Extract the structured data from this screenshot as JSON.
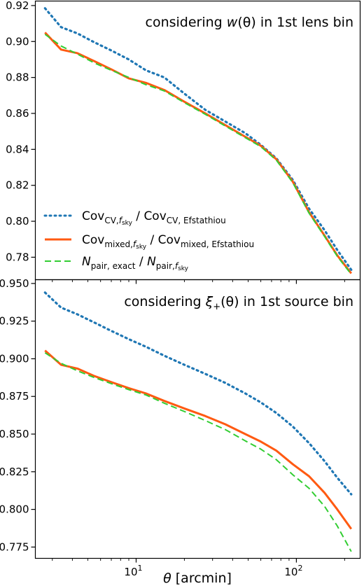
{
  "figure": {
    "xlabel": "θ [arcmin]",
    "xscale": "log",
    "xlim": [
      2.35,
      250
    ],
    "x_ticks": [
      {
        "value": 10,
        "label": "10",
        "sup": "1"
      },
      {
        "value": 100,
        "label": "10",
        "sup": "2"
      }
    ]
  },
  "styles": {
    "series_colors": [
      "#1f77b4",
      "#ff5a12",
      "#32cd32"
    ],
    "series_dash": [
      "dotted",
      "solid",
      "dashed"
    ]
  },
  "legend": {
    "placement": "lower-left of top panel",
    "entries": [
      {
        "base1": "Cov",
        "sub1": "CV,",
        "sub1_italic": "f",
        "sub1_sub": "sky",
        "sep": " / ",
        "base2": "Cov",
        "sub2": "CV, Efstathiou"
      },
      {
        "base1": "Cov",
        "sub1": "mixed,",
        "sub1_italic": "f",
        "sub1_sub": "sky",
        "sep": " / ",
        "base2": "Cov",
        "sub2": "mixed, Efstathiou"
      },
      {
        "base1": "N",
        "sub1": "pair, exact",
        "sub1_italic": "",
        "sub1_sub": "",
        "sep": " / ",
        "base2": "N",
        "sub2": "pair,",
        "sub2_italic": "f",
        "sub2_sub": "sky"
      }
    ]
  },
  "chart_data": [
    {
      "type": "line",
      "annotation": {
        "pre": "considering ",
        "func": "w",
        "func_sub": "",
        "arg": "(θ)",
        "post": " in 1st lens bin"
      },
      "ylim": [
        0.7675,
        0.9225
      ],
      "y_ticks": [
        "0.78",
        "0.80",
        "0.82",
        "0.84",
        "0.86",
        "0.88",
        "0.90",
        "0.92"
      ],
      "x": [
        2.7,
        3.4,
        4.3,
        5.5,
        7.0,
        9.0,
        11.5,
        15.0,
        20.0,
        27.0,
        36.0,
        48.0,
        60.0,
        75.0,
        95.0,
        120.0,
        150.0,
        180.0,
        220.0
      ],
      "series": [
        {
          "values": [
            0.9185,
            0.908,
            0.9045,
            0.8995,
            0.895,
            0.89,
            0.884,
            0.88,
            0.871,
            0.862,
            0.8555,
            0.849,
            0.8425,
            0.835,
            0.823,
            0.807,
            0.795,
            0.784,
            0.773
          ]
        },
        {
          "values": [
            0.905,
            0.8955,
            0.8935,
            0.889,
            0.8845,
            0.8795,
            0.877,
            0.873,
            0.8665,
            0.86,
            0.8535,
            0.847,
            0.842,
            0.8345,
            0.822,
            0.805,
            0.792,
            0.781,
            0.771
          ]
        },
        {
          "values": [
            0.904,
            0.8975,
            0.893,
            0.888,
            0.884,
            0.88,
            0.876,
            0.8725,
            0.866,
            0.8595,
            0.853,
            0.8465,
            0.8415,
            0.834,
            0.8215,
            0.8045,
            0.7915,
            0.7805,
            0.7705
          ]
        }
      ]
    },
    {
      "type": "line",
      "annotation": {
        "pre": "considering ",
        "func": "ξ",
        "func_sub": "+",
        "arg": "(θ)",
        "post": " in 1st source bin"
      },
      "ylim": [
        0.7675,
        0.9525
      ],
      "y_ticks": [
        "0.775",
        "0.800",
        "0.825",
        "0.850",
        "0.875",
        "0.900",
        "0.925",
        "0.950"
      ],
      "x": [
        2.7,
        3.4,
        4.3,
        5.5,
        7.0,
        9.0,
        11.5,
        15.0,
        20.0,
        27.0,
        36.0,
        48.0,
        60.0,
        75.0,
        95.0,
        120.0,
        150.0,
        180.0,
        220.0
      ],
      "series": [
        {
          "values": [
            0.944,
            0.934,
            0.9295,
            0.924,
            0.9185,
            0.913,
            0.908,
            0.902,
            0.896,
            0.89,
            0.884,
            0.877,
            0.871,
            0.864,
            0.855,
            0.844,
            0.832,
            0.821,
            0.81
          ]
        },
        {
          "values": [
            0.9055,
            0.896,
            0.8935,
            0.8885,
            0.8845,
            0.8805,
            0.877,
            0.872,
            0.867,
            0.862,
            0.8565,
            0.85,
            0.845,
            0.839,
            0.83,
            0.822,
            0.811,
            0.8,
            0.787
          ]
        },
        {
          "values": [
            0.904,
            0.897,
            0.892,
            0.8875,
            0.8835,
            0.8795,
            0.876,
            0.8705,
            0.865,
            0.859,
            0.853,
            0.8455,
            0.84,
            0.833,
            0.823,
            0.814,
            0.802,
            0.789,
            0.772
          ]
        }
      ]
    }
  ]
}
